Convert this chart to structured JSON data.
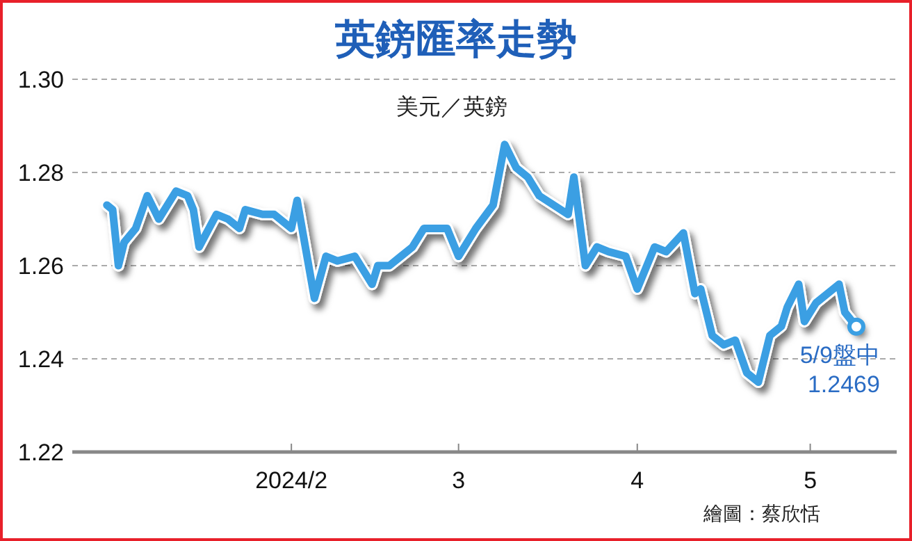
{
  "chart_data": {
    "type": "line",
    "title": "英鎊匯率走勢",
    "subtitle": "美元／英鎊",
    "x": [
      "2023-12-31",
      "2024-01-01",
      "2024-01-02",
      "2024-01-03",
      "2024-01-05",
      "2024-01-07",
      "2024-01-09",
      "2024-01-12",
      "2024-01-14",
      "2024-01-15",
      "2024-01-16",
      "2024-01-19",
      "2024-01-21",
      "2024-01-23",
      "2024-01-24",
      "2024-01-27",
      "2024-01-29",
      "2024-02-01",
      "2024-02-02",
      "2024-02-05",
      "2024-02-07",
      "2024-02-09",
      "2024-02-12",
      "2024-02-15",
      "2024-02-16",
      "2024-02-18",
      "2024-02-20",
      "2024-02-22",
      "2024-02-24",
      "2024-02-28",
      "2024-03-01",
      "2024-03-04",
      "2024-03-07",
      "2024-03-09",
      "2024-03-11",
      "2024-03-13",
      "2024-03-15",
      "2024-03-20",
      "2024-03-21",
      "2024-03-23",
      "2024-03-25",
      "2024-03-27",
      "2024-03-30",
      "2024-04-01",
      "2024-04-04",
      "2024-04-06",
      "2024-04-09",
      "2024-04-11",
      "2024-04-12",
      "2024-04-14",
      "2024-04-16",
      "2024-04-18",
      "2024-04-20",
      "2024-04-22",
      "2024-04-24",
      "2024-04-26",
      "2024-04-27",
      "2024-04-29",
      "2024-04-30",
      "2024-05-02",
      "2024-05-06",
      "2024-05-07",
      "2024-05-09"
    ],
    "series": [
      {
        "color": "#3a9fe3",
        "values": [
          1.273,
          1.272,
          1.26,
          1.265,
          1.268,
          1.275,
          1.27,
          1.276,
          1.275,
          1.272,
          1.264,
          1.271,
          1.27,
          1.268,
          1.272,
          1.271,
          1.271,
          1.268,
          1.274,
          1.253,
          1.262,
          1.261,
          1.262,
          1.256,
          1.26,
          1.26,
          1.262,
          1.264,
          1.268,
          1.268,
          1.262,
          1.268,
          1.273,
          1.286,
          1.281,
          1.279,
          1.275,
          1.271,
          1.279,
          1.26,
          1.264,
          1.263,
          1.262,
          1.255,
          1.264,
          1.263,
          1.267,
          1.254,
          1.255,
          1.245,
          1.243,
          1.244,
          1.237,
          1.235,
          1.245,
          1.247,
          1.251,
          1.256,
          1.248,
          1.252,
          1.256,
          1.25,
          1.2469
        ]
      }
    ],
    "xlim": [
      "2023-12-25",
      "2024-05-16"
    ],
    "xticks": [
      {
        "value": "2024-02-01",
        "label": "2024/2"
      },
      {
        "value": "2024-03-01",
        "label": "3"
      },
      {
        "value": "2024-04-01",
        "label": "4"
      },
      {
        "value": "2024-05-01",
        "label": "5"
      }
    ],
    "ylim": [
      1.22,
      1.3
    ],
    "yticks": [
      {
        "value": 1.22,
        "label": "1.22"
      },
      {
        "value": 1.24,
        "label": "1.24"
      },
      {
        "value": 1.26,
        "label": "1.26"
      },
      {
        "value": 1.28,
        "label": "1.28"
      },
      {
        "value": 1.3,
        "label": "1.30"
      }
    ],
    "grid": "y",
    "annotations": [
      {
        "text": "5/9盤中\n1.2469",
        "x": "2024-05-09",
        "y": 1.2469
      },
      "繪圖：蔡欣恬"
    ]
  }
}
